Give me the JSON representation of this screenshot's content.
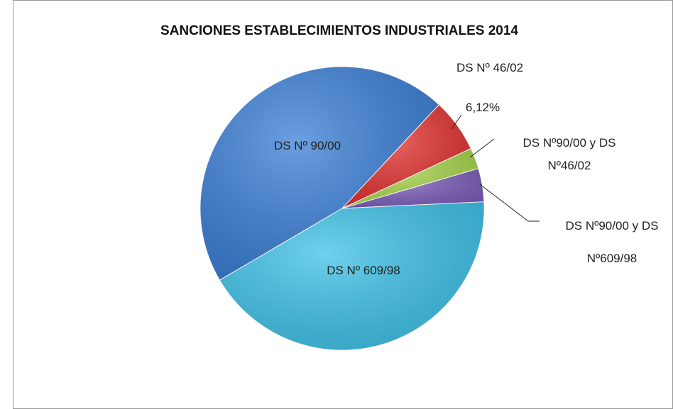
{
  "chart_data": {
    "type": "pie",
    "title": "SANCIONES ESTABLECIMIENTOS INDUSTRIALES 2014",
    "categories": [
      "DS Nº 90/00",
      "DS Nº 46/02",
      "DS Nº90/00 y DS Nº46/02",
      "DS Nº90/00 y DS Nº609/98",
      "DS Nº 609/98"
    ],
    "values": [
      45.4,
      6.12,
      2.4,
      3.8,
      42.3
    ],
    "value_labels": [
      null,
      "6,12%",
      null,
      null,
      null
    ],
    "colors": [
      "#3b7fd6",
      "#e2322f",
      "#a6d54a",
      "#7c5cba",
      "#3ec2e8"
    ]
  }
}
